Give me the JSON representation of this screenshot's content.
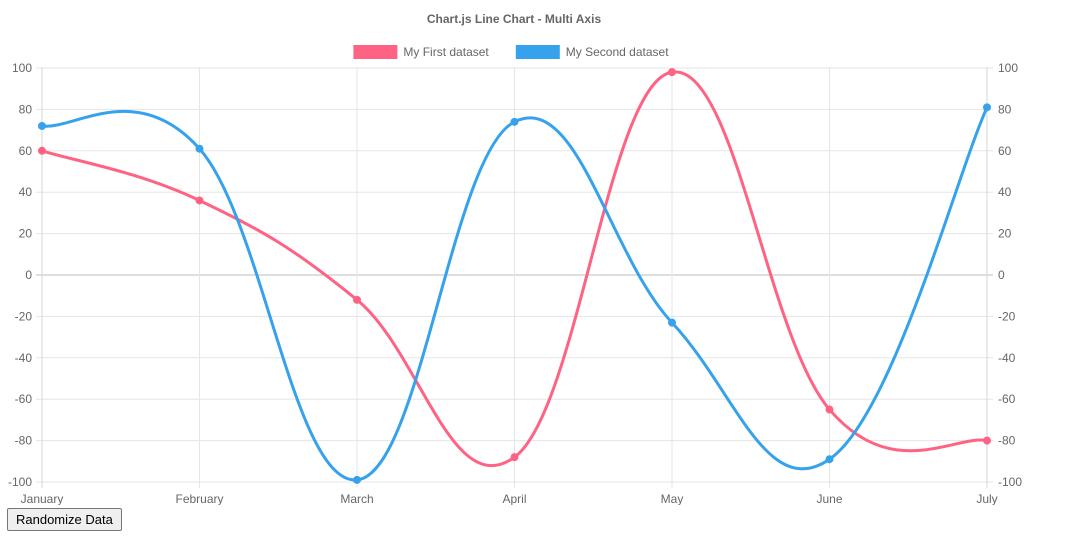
{
  "chart_data": {
    "type": "line",
    "title": "Chart.js Line Chart - Multi Axis",
    "categories": [
      "January",
      "February",
      "March",
      "April",
      "May",
      "June",
      "July"
    ],
    "y_left": {
      "ylim": [
        -100,
        100
      ],
      "ticks": [
        "100",
        "80",
        "60",
        "40",
        "20",
        "0",
        "-20",
        "-40",
        "-60",
        "-80",
        "-100"
      ]
    },
    "y_right": {
      "ylim": [
        -100,
        100
      ],
      "ticks": [
        "100",
        "80",
        "60",
        "40",
        "20",
        "0",
        "-20",
        "-40",
        "-60",
        "-80",
        "-100"
      ]
    },
    "grid": true,
    "legend_position": "top",
    "series": [
      {
        "name": "My First dataset",
        "color": "#ff6384",
        "axis": "left",
        "values": [
          60,
          36,
          -12,
          -88,
          98,
          -65,
          -80
        ]
      },
      {
        "name": "My Second dataset",
        "color": "#36a2eb",
        "axis": "right",
        "values": [
          72,
          61,
          -99,
          74,
          -23,
          -89,
          81
        ]
      }
    ]
  },
  "controls": {
    "randomize_label": "Randomize Data"
  }
}
